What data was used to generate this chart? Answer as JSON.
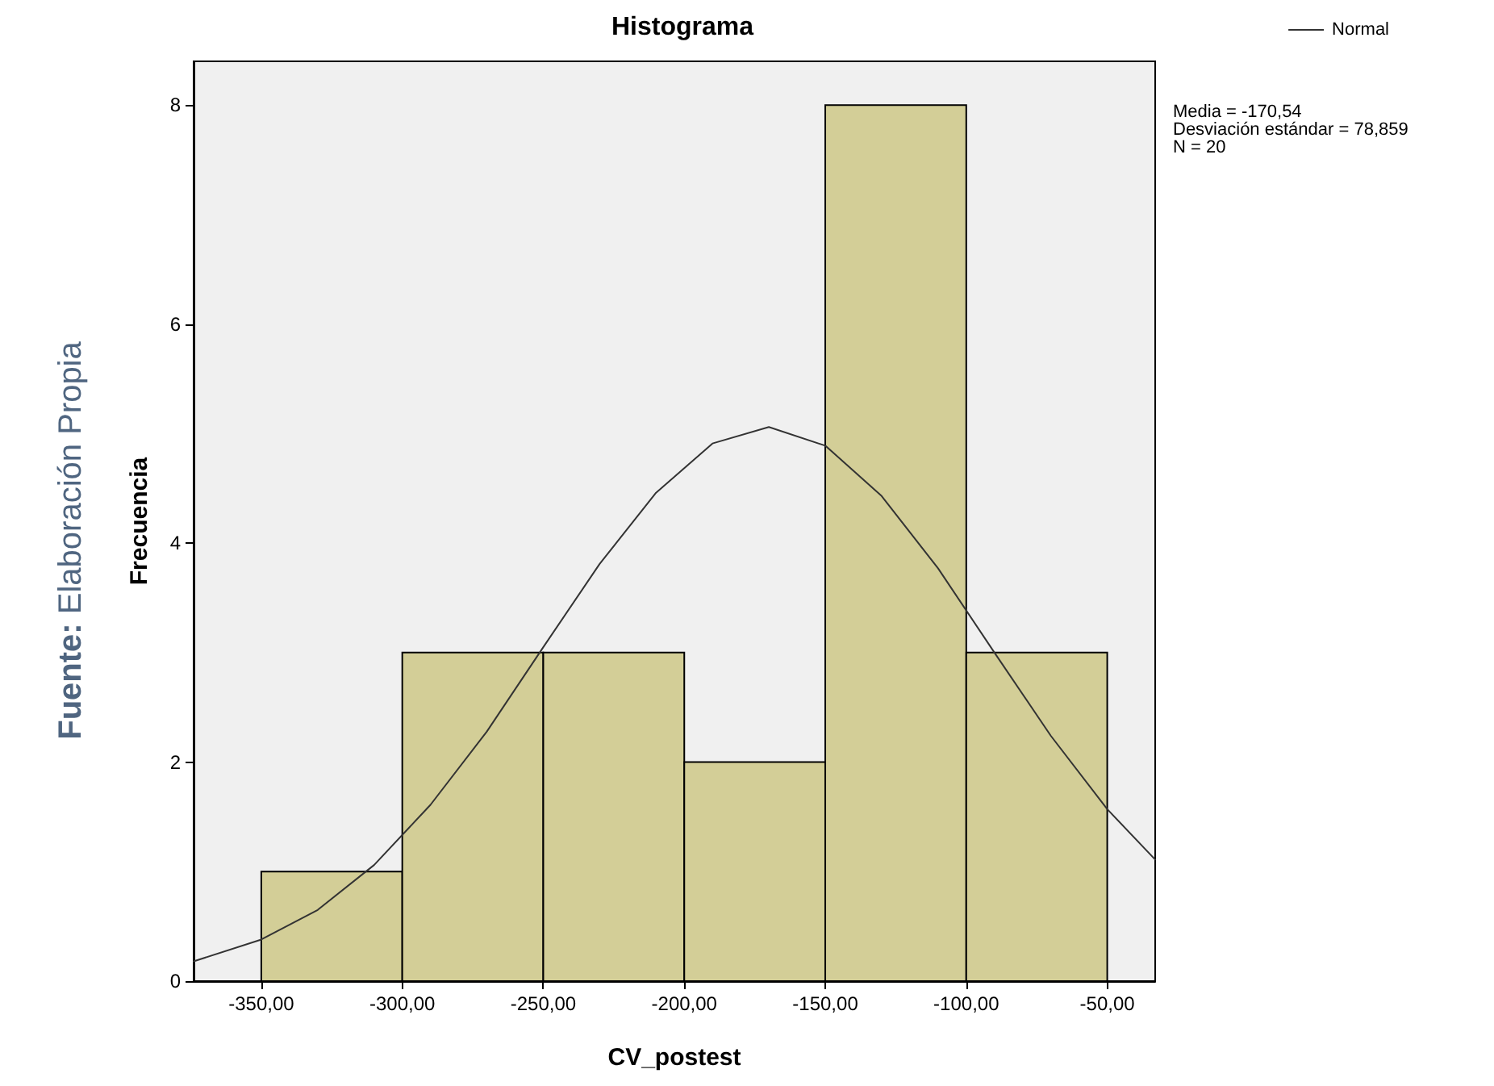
{
  "chart_data": {
    "type": "histogram",
    "title": "Histograma",
    "xlabel": "CV_postest",
    "ylabel": "Frecuencia",
    "bins": [
      -350,
      -300,
      -250,
      -200,
      -150,
      -100,
      -50
    ],
    "values": [
      1,
      3,
      3,
      2,
      8,
      3
    ],
    "color": "#d3ce97",
    "series": [
      {
        "name": "Normal",
        "type": "line",
        "color": "#333333",
        "x": [
          -374,
          -350,
          -330,
          -310,
          -290,
          -270,
          -250,
          -230,
          -210,
          -190,
          -170,
          -150,
          -130,
          -110,
          -90,
          -70,
          -50,
          -33
        ],
        "values": [
          0.18,
          0.38,
          0.65,
          1.06,
          1.61,
          2.28,
          3.05,
          3.81,
          4.46,
          4.91,
          5.06,
          4.89,
          4.43,
          3.77,
          3.0,
          2.24,
          1.57,
          1.11
        ]
      }
    ],
    "xlim": [
      -374,
      -33
    ],
    "ylim": [
      0,
      8.4
    ],
    "xticks": [
      {
        "value": -350,
        "label": "-350,00"
      },
      {
        "value": -300,
        "label": "-300,00"
      },
      {
        "value": -250,
        "label": "-250,00"
      },
      {
        "value": -200,
        "label": "-200,00"
      },
      {
        "value": -150,
        "label": "-150,00"
      },
      {
        "value": -100,
        "label": "-100,00"
      },
      {
        "value": -50,
        "label": "-50,00"
      }
    ],
    "yticks": [
      0,
      2,
      4,
      6,
      8
    ],
    "grid": false,
    "legend": "top right",
    "marker": "none",
    "line_style": "solid",
    "annotations": [
      "Media = -170,54",
      "Desviación estándar = 78,859",
      "N = 20",
      "Fuente: Elaboración Propia"
    ]
  }
}
